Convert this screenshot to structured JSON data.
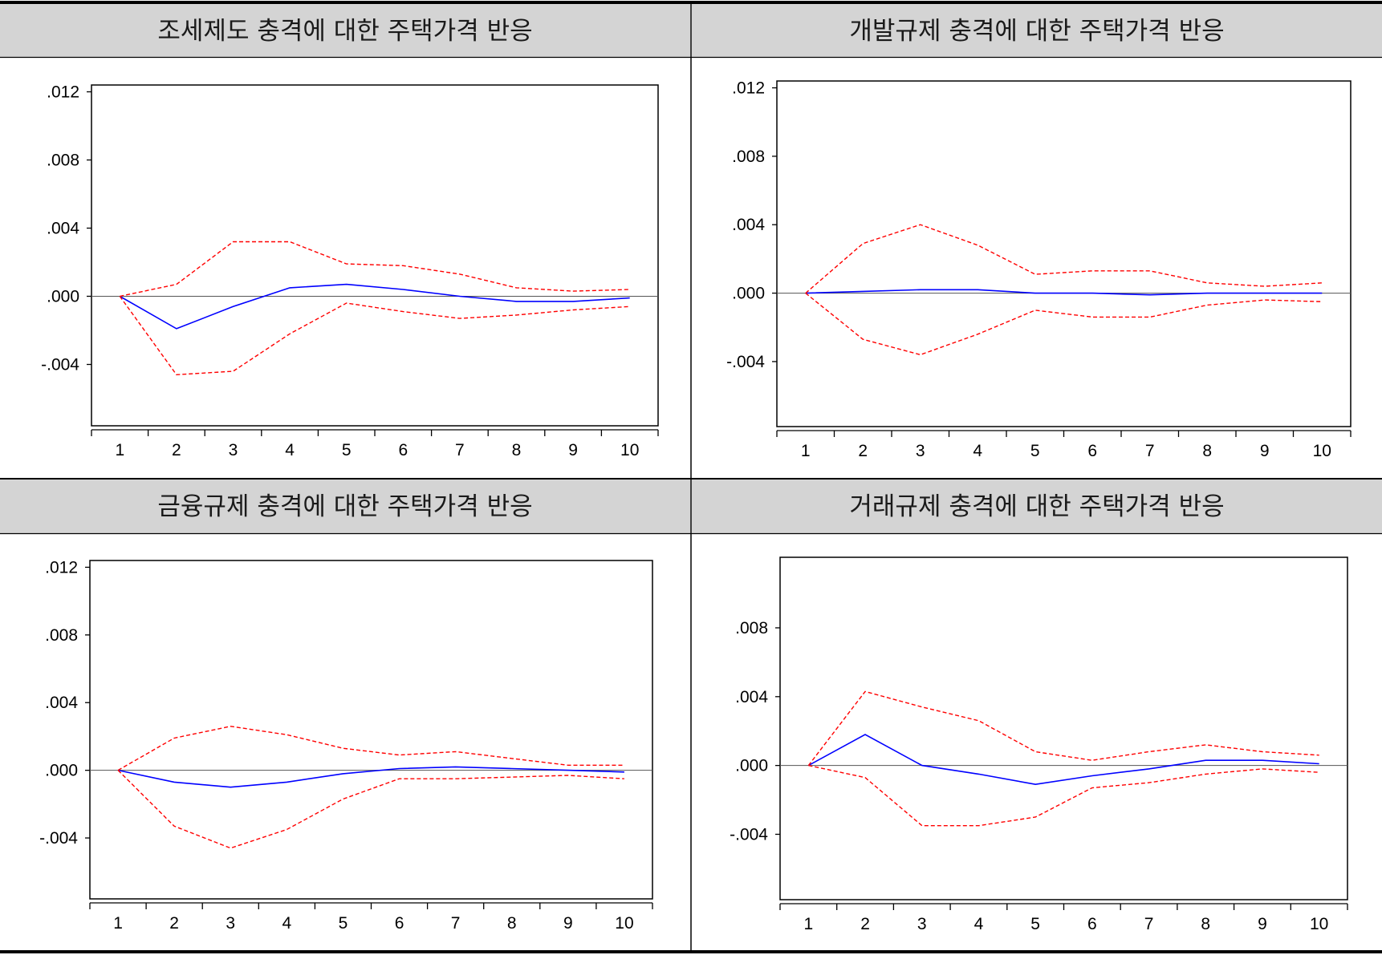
{
  "colors": {
    "response": "#0000ff",
    "band": "#ff0000",
    "title_bg": "#d4d4d4"
  },
  "chart_data": [
    {
      "type": "line",
      "title": "조세제도 충격에 대한 주택가격 반응",
      "x": [
        1,
        2,
        3,
        4,
        5,
        6,
        7,
        8,
        9,
        10
      ],
      "ylim": [
        -0.0076,
        0.0124
      ],
      "yticks": [
        0.012,
        0.008,
        0.004,
        0.0,
        -0.004
      ],
      "ytick_labels": [
        ".012",
        ".008",
        ".004",
        ".000",
        "-.004"
      ],
      "xtick_labels": [
        "1",
        "2",
        "3",
        "4",
        "5",
        "6",
        "7",
        "8",
        "9",
        "10"
      ],
      "series": [
        {
          "role": "response",
          "style": "solid",
          "color": "#0000ff",
          "values": [
            0.0,
            -0.0019,
            -0.0006,
            0.0005,
            0.0007,
            0.0004,
            0.0,
            -0.0003,
            -0.0003,
            -0.0001
          ]
        },
        {
          "role": "upper_band",
          "style": "dashed",
          "color": "#ff0000",
          "values": [
            0.0,
            0.0007,
            0.0032,
            0.0032,
            0.0019,
            0.0018,
            0.0013,
            0.0005,
            0.0003,
            0.0004
          ]
        },
        {
          "role": "lower_band",
          "style": "dashed",
          "color": "#ff0000",
          "values": [
            0.0,
            -0.0046,
            -0.0044,
            -0.0022,
            -0.0004,
            -0.0009,
            -0.0013,
            -0.0011,
            -0.0008,
            -0.0006
          ]
        }
      ]
    },
    {
      "type": "line",
      "title": "개발규제 충격에 대한 주택가격 반응",
      "x": [
        1,
        2,
        3,
        4,
        5,
        6,
        7,
        8,
        9,
        10
      ],
      "ylim": [
        -0.0078,
        0.0124
      ],
      "yticks": [
        0.012,
        0.008,
        0.004,
        0.0,
        -0.004
      ],
      "ytick_labels": [
        ".012",
        ".008",
        ".004",
        ".000",
        "-.004"
      ],
      "xtick_labels": [
        "1",
        "2",
        "3",
        "4",
        "5",
        "6",
        "7",
        "8",
        "9",
        "10"
      ],
      "series": [
        {
          "role": "response",
          "style": "solid",
          "color": "#0000ff",
          "values": [
            0.0,
            0.0001,
            0.0002,
            0.0002,
            0.0,
            0.0,
            -0.0001,
            0.0,
            0.0,
            0.0
          ]
        },
        {
          "role": "upper_band",
          "style": "dashed",
          "color": "#ff0000",
          "values": [
            0.0,
            0.0029,
            0.004,
            0.0028,
            0.0011,
            0.0013,
            0.0013,
            0.0006,
            0.0004,
            0.0006
          ]
        },
        {
          "role": "lower_band",
          "style": "dashed",
          "color": "#ff0000",
          "values": [
            0.0,
            -0.0027,
            -0.0036,
            -0.0024,
            -0.001,
            -0.0014,
            -0.0014,
            -0.0007,
            -0.0004,
            -0.0005
          ]
        }
      ]
    },
    {
      "type": "line",
      "title": "금융규제 충격에 대한 주택가격 반응",
      "x": [
        1,
        2,
        3,
        4,
        5,
        6,
        7,
        8,
        9,
        10
      ],
      "ylim": [
        -0.0076,
        0.0124
      ],
      "yticks": [
        0.012,
        0.008,
        0.004,
        0.0,
        -0.004
      ],
      "ytick_labels": [
        ".012",
        ".008",
        ".004",
        ".000",
        "-.004"
      ],
      "xtick_labels": [
        "1",
        "2",
        "3",
        "4",
        "5",
        "6",
        "7",
        "8",
        "9",
        "10"
      ],
      "series": [
        {
          "role": "response",
          "style": "solid",
          "color": "#0000ff",
          "values": [
            0.0,
            -0.0007,
            -0.001,
            -0.0007,
            -0.0002,
            0.0001,
            0.0002,
            0.0001,
            0.0,
            -0.0001
          ]
        },
        {
          "role": "upper_band",
          "style": "dashed",
          "color": "#ff0000",
          "values": [
            0.0,
            0.0019,
            0.0026,
            0.0021,
            0.0013,
            0.0009,
            0.0011,
            0.0007,
            0.0003,
            0.0003
          ]
        },
        {
          "role": "lower_band",
          "style": "dashed",
          "color": "#ff0000",
          "values": [
            0.0,
            -0.0033,
            -0.0046,
            -0.0035,
            -0.0017,
            -0.0005,
            -0.0005,
            -0.0004,
            -0.0003,
            -0.0005
          ]
        }
      ]
    },
    {
      "type": "line",
      "title": "거래규제 충격에 대한 주택가격 반응",
      "x": [
        1,
        2,
        3,
        4,
        5,
        6,
        7,
        8,
        9,
        10
      ],
      "ylim": [
        -0.0078,
        0.0121
      ],
      "yticks": [
        0.008,
        0.004,
        0.0,
        -0.004
      ],
      "ytick_labels": [
        ".008",
        ".004",
        ".000",
        "-.004"
      ],
      "xtick_labels": [
        "1",
        "2",
        "3",
        "4",
        "5",
        "6",
        "7",
        "8",
        "9",
        "10"
      ],
      "series": [
        {
          "role": "response",
          "style": "solid",
          "color": "#0000ff",
          "values": [
            0.0,
            0.0018,
            0.0,
            -0.0005,
            -0.0011,
            -0.0006,
            -0.0002,
            0.0003,
            0.0003,
            0.0001
          ]
        },
        {
          "role": "upper_band",
          "style": "dashed",
          "color": "#ff0000",
          "values": [
            0.0,
            0.0043,
            0.0034,
            0.0026,
            0.0008,
            0.0003,
            0.0008,
            0.0012,
            0.0008,
            0.0006
          ]
        },
        {
          "role": "lower_band",
          "style": "dashed",
          "color": "#ff0000",
          "values": [
            0.0,
            -0.0007,
            -0.0035,
            -0.0035,
            -0.003,
            -0.0013,
            -0.001,
            -0.0005,
            -0.0002,
            -0.0004
          ]
        }
      ]
    }
  ]
}
